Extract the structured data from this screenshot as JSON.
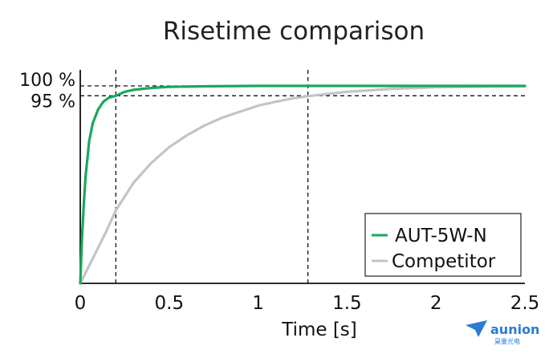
{
  "chart_data": {
    "type": "line",
    "title": "Risetime comparison",
    "xlabel": "Time [s]",
    "ylabel": "",
    "xlim": [
      0,
      2.5
    ],
    "ylim": [
      0,
      100
    ],
    "x_ticks": [
      {
        "value": 0,
        "label": "0"
      },
      {
        "value": 0.5,
        "label": "0.5"
      },
      {
        "value": 1,
        "label": "1"
      },
      {
        "value": 1.5,
        "label": "1.5"
      },
      {
        "value": 2,
        "label": "2"
      },
      {
        "value": 2.5,
        "label": "2.5"
      }
    ],
    "y_ticks": [
      {
        "value": 100,
        "label": "100 %"
      },
      {
        "value": 95,
        "label": "95 %"
      }
    ],
    "reference_lines": {
      "horizontal": [
        100,
        95
      ],
      "vertical": [
        0.2,
        1.28
      ]
    },
    "grid": false,
    "legend_position": "bottom-right",
    "series": [
      {
        "name": "AUT-5W-N",
        "color": "#1aa85c",
        "x": [
          0,
          0.01,
          0.02,
          0.03,
          0.05,
          0.07,
          0.1,
          0.13,
          0.16,
          0.2,
          0.25,
          0.3,
          0.4,
          0.5,
          0.7,
          1.0,
          1.5,
          2.0,
          2.5
        ],
        "y": [
          0,
          23,
          40,
          54,
          72,
          81,
          88,
          92,
          94,
          95,
          97,
          98,
          99,
          99.5,
          99.8,
          100,
          100,
          100,
          100
        ]
      },
      {
        "name": "Competitor",
        "color": "#c4c4c4",
        "x": [
          0,
          0.05,
          0.1,
          0.15,
          0.2,
          0.25,
          0.3,
          0.4,
          0.5,
          0.6,
          0.7,
          0.8,
          0.9,
          1.0,
          1.1,
          1.2,
          1.3,
          1.5,
          1.75,
          2.0,
          2.25,
          2.5
        ],
        "y": [
          0,
          9,
          18,
          27,
          37,
          44,
          51,
          61,
          69,
          75,
          80,
          84,
          87,
          90,
          92,
          93.8,
          95,
          97,
          98.5,
          99.3,
          99.6,
          99.8
        ]
      }
    ]
  },
  "watermark": {
    "brand": "aunion",
    "sub": "昊量光电"
  }
}
